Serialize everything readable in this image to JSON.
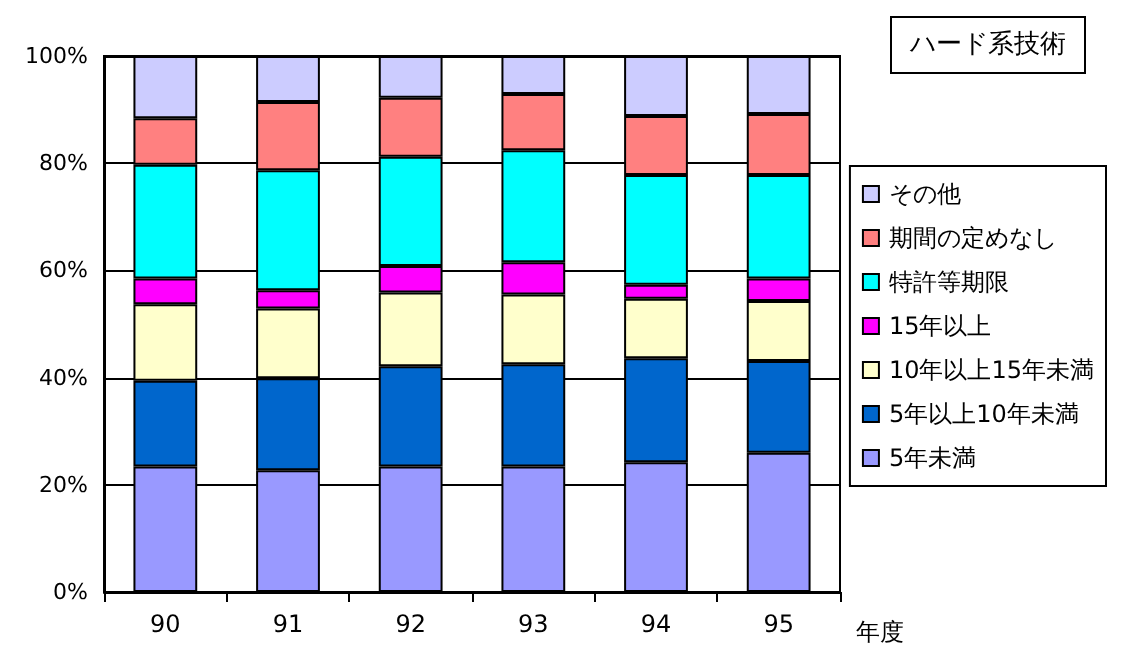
{
  "chart_data": {
    "type": "bar",
    "title": "ハード系技術",
    "xlabel": "年度",
    "categories": [
      "90",
      "91",
      "92",
      "93",
      "94",
      "95"
    ],
    "stacked": true,
    "series": [
      {
        "name": "5年未満",
        "color": "#9999ff",
        "values": [
          23.4,
          22.7,
          23.4,
          23.4,
          24.2,
          26.0
        ]
      },
      {
        "name": "5年以上10年未満",
        "color": "#0066cc",
        "values": [
          16.0,
          17.2,
          18.7,
          19.1,
          19.4,
          17.1
        ]
      },
      {
        "name": "10年以上15年未満",
        "color": "#ffffcc",
        "values": [
          14.3,
          13.0,
          13.8,
          13.0,
          11.1,
          11.2
        ]
      },
      {
        "name": "15年以上",
        "color": "#ff00ff",
        "values": [
          4.8,
          3.4,
          4.9,
          6.0,
          2.6,
          4.2
        ]
      },
      {
        "name": "特許等期限",
        "color": "#00ffff",
        "values": [
          21.2,
          22.4,
          20.4,
          20.9,
          20.5,
          19.3
        ]
      },
      {
        "name": "期間の定めなし",
        "color": "#ff8080",
        "values": [
          8.7,
          12.7,
          11.0,
          10.5,
          11.0,
          11.4
        ]
      },
      {
        "name": "その他",
        "color": "#ccccff",
        "values": [
          11.6,
          8.6,
          7.8,
          7.1,
          11.2,
          10.8
        ]
      }
    ],
    "ylim": [
      0,
      100
    ],
    "yticks": [
      {
        "value": 0,
        "label": "0%"
      },
      {
        "value": 20,
        "label": "20%"
      },
      {
        "value": 40,
        "label": "40%"
      },
      {
        "value": 60,
        "label": "60%"
      },
      {
        "value": 80,
        "label": "80%"
      },
      {
        "value": 100,
        "label": "100%"
      }
    ],
    "grid": "y",
    "legend": "right"
  }
}
